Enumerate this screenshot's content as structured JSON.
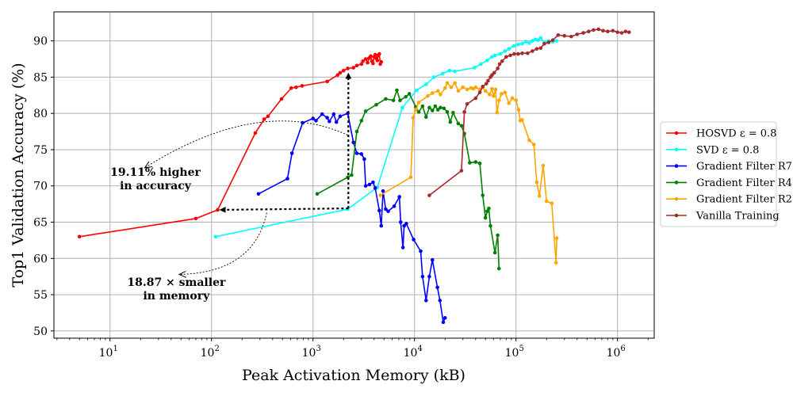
{
  "chart_data": {
    "type": "line",
    "xlabel": "Peak Activation Memory (kB)",
    "ylabel": "Top1 Validation Accuracy (%)",
    "xscale": "log",
    "xlim": [
      2.8,
      2300000
    ],
    "ylim": [
      49,
      94
    ],
    "grid": true,
    "legend_position": "right",
    "yticks": [
      50,
      55,
      60,
      65,
      70,
      75,
      80,
      85,
      90
    ],
    "xticks": [
      {
        "value": 10,
        "base": "10",
        "exp": "1"
      },
      {
        "value": 100,
        "base": "10",
        "exp": "2"
      },
      {
        "value": 1000,
        "base": "10",
        "exp": "3"
      },
      {
        "value": 10000,
        "base": "10",
        "exp": "4"
      },
      {
        "value": 100000,
        "base": "10",
        "exp": "5"
      },
      {
        "value": 1000000,
        "base": "10",
        "exp": "6"
      }
    ],
    "series": [
      {
        "name": "HOSVD ε = 0.8",
        "color": "#ff0000",
        "points": [
          [
            5,
            63.0
          ],
          [
            70,
            65.5
          ],
          [
            115,
            66.7
          ],
          [
            270,
            77.3
          ],
          [
            330,
            79.2
          ],
          [
            360,
            79.6
          ],
          [
            490,
            82.0
          ],
          [
            610,
            83.5
          ],
          [
            680,
            83.6
          ],
          [
            780,
            83.8
          ],
          [
            1380,
            84.4
          ],
          [
            1750,
            85.3
          ],
          [
            1850,
            85.6
          ],
          [
            2000,
            85.9
          ],
          [
            2200,
            86.2
          ],
          [
            2500,
            86.3
          ],
          [
            2700,
            86.6
          ],
          [
            3000,
            86.8
          ],
          [
            3100,
            87.2
          ],
          [
            3300,
            87.5
          ],
          [
            3450,
            87.0
          ],
          [
            3550,
            87.6
          ],
          [
            3700,
            87.9
          ],
          [
            3800,
            87.2
          ],
          [
            3900,
            86.9
          ],
          [
            4000,
            87.8
          ],
          [
            4100,
            88.1
          ],
          [
            4200,
            87.6
          ],
          [
            4300,
            87.3
          ],
          [
            4400,
            88.0
          ],
          [
            4500,
            88.2
          ],
          [
            4600,
            86.8
          ],
          [
            4700,
            87.1
          ]
        ]
      },
      {
        "name": "SVD ε = 0.8",
        "color": "#00ffff",
        "points": [
          [
            110,
            63.0
          ],
          [
            2200,
            66.8
          ],
          [
            4300,
            69.8
          ],
          [
            7600,
            80.8
          ],
          [
            10500,
            83.2
          ],
          [
            13000,
            84.0
          ],
          [
            15500,
            85.0
          ],
          [
            19000,
            85.5
          ],
          [
            22000,
            85.9
          ],
          [
            25000,
            85.8
          ],
          [
            39000,
            86.3
          ],
          [
            45000,
            86.8
          ],
          [
            52000,
            87.3
          ],
          [
            58000,
            87.8
          ],
          [
            62000,
            88.0
          ],
          [
            70000,
            88.2
          ],
          [
            78000,
            88.6
          ],
          [
            85000,
            88.9
          ],
          [
            95000,
            89.3
          ],
          [
            105000,
            89.5
          ],
          [
            115000,
            89.6
          ],
          [
            125000,
            89.9
          ],
          [
            135000,
            89.7
          ],
          [
            145000,
            90.0
          ],
          [
            155000,
            90.2
          ],
          [
            165000,
            90.1
          ],
          [
            175000,
            90.4
          ],
          [
            190000,
            89.8
          ],
          [
            210000,
            90.0
          ],
          [
            230000,
            89.9
          ],
          [
            250000,
            90.0
          ]
        ]
      },
      {
        "name": "Gradient Filter R7",
        "color": "#0000ff",
        "points": [
          [
            290,
            68.9
          ],
          [
            560,
            71.0
          ],
          [
            620,
            74.5
          ],
          [
            790,
            78.7
          ],
          [
            1000,
            79.3
          ],
          [
            1070,
            79.0
          ],
          [
            1230,
            79.9
          ],
          [
            1380,
            79.4
          ],
          [
            1450,
            78.9
          ],
          [
            1600,
            79.9
          ],
          [
            1700,
            78.8
          ],
          [
            1850,
            79.6
          ],
          [
            2200,
            80.0
          ],
          [
            2500,
            76.0
          ],
          [
            2700,
            74.5
          ],
          [
            3000,
            74.4
          ],
          [
            3200,
            73.7
          ],
          [
            3300,
            70.0
          ],
          [
            3600,
            70.2
          ],
          [
            3900,
            70.5
          ],
          [
            4100,
            69.7
          ],
          [
            4500,
            66.6
          ],
          [
            4700,
            64.5
          ],
          [
            4900,
            69.3
          ],
          [
            5200,
            66.8
          ],
          [
            5500,
            66.5
          ],
          [
            6300,
            67.2
          ],
          [
            7100,
            68.5
          ],
          [
            7300,
            65.0
          ],
          [
            7700,
            61.5
          ],
          [
            7900,
            64.5
          ],
          [
            8300,
            64.8
          ],
          [
            9800,
            62.6
          ],
          [
            11500,
            61.0
          ],
          [
            12000,
            57.5
          ],
          [
            13000,
            54.2
          ],
          [
            14000,
            57.5
          ],
          [
            15000,
            59.8
          ],
          [
            16800,
            56.0
          ],
          [
            17800,
            54.2
          ],
          [
            19200,
            51.2
          ],
          [
            20000,
            51.8
          ]
        ]
      },
      {
        "name": "Gradient Filter R4",
        "color": "#008000",
        "points": [
          [
            1100,
            68.9
          ],
          [
            2200,
            71.2
          ],
          [
            2400,
            71.5
          ],
          [
            2700,
            77.5
          ],
          [
            3000,
            79.0
          ],
          [
            3300,
            80.3
          ],
          [
            4200,
            81.2
          ],
          [
            5200,
            82.0
          ],
          [
            6200,
            81.8
          ],
          [
            6700,
            83.2
          ],
          [
            7200,
            81.8
          ],
          [
            8200,
            82.3
          ],
          [
            8900,
            82.7
          ],
          [
            10300,
            80.9
          ],
          [
            11000,
            80.2
          ],
          [
            12000,
            81.0
          ],
          [
            13000,
            79.5
          ],
          [
            14000,
            80.8
          ],
          [
            15000,
            80.4
          ],
          [
            16000,
            81.0
          ],
          [
            17000,
            80.5
          ],
          [
            18000,
            80.8
          ],
          [
            19500,
            80.7
          ],
          [
            21000,
            80.2
          ],
          [
            22500,
            78.8
          ],
          [
            24000,
            80.1
          ],
          [
            27000,
            78.6
          ],
          [
            29000,
            78.3
          ],
          [
            31000,
            77.2
          ],
          [
            35000,
            73.2
          ],
          [
            40000,
            73.3
          ],
          [
            44000,
            73.1
          ],
          [
            47000,
            68.7
          ],
          [
            50000,
            65.6
          ],
          [
            52000,
            66.5
          ],
          [
            54000,
            66.9
          ],
          [
            56000,
            64.5
          ],
          [
            62000,
            60.8
          ],
          [
            66000,
            63.2
          ],
          [
            68000,
            58.6
          ]
        ]
      },
      {
        "name": "Gradient Filter R2",
        "color": "#ffa500",
        "points": [
          [
            4600,
            68.7
          ],
          [
            9200,
            71.2
          ],
          [
            9700,
            79.4
          ],
          [
            10300,
            80.5
          ],
          [
            11000,
            81.5
          ],
          [
            13500,
            82.4
          ],
          [
            15000,
            82.8
          ],
          [
            17000,
            83.1
          ],
          [
            18000,
            82.6
          ],
          [
            20000,
            83.5
          ],
          [
            21000,
            84.2
          ],
          [
            23000,
            83.6
          ],
          [
            25000,
            84.2
          ],
          [
            27000,
            83.1
          ],
          [
            30000,
            83.6
          ],
          [
            33000,
            83.3
          ],
          [
            36000,
            83.5
          ],
          [
            38000,
            83.4
          ],
          [
            40000,
            83.6
          ],
          [
            44000,
            83.3
          ],
          [
            47000,
            83.6
          ],
          [
            50000,
            83.1
          ],
          [
            55000,
            82.6
          ],
          [
            58000,
            83.4
          ],
          [
            60000,
            82.4
          ],
          [
            63000,
            83.3
          ],
          [
            65000,
            80.1
          ],
          [
            68000,
            81.8
          ],
          [
            72000,
            82.7
          ],
          [
            78000,
            82.9
          ],
          [
            85000,
            81.4
          ],
          [
            92000,
            82.1
          ],
          [
            100000,
            81.8
          ],
          [
            106000,
            80.5
          ],
          [
            110000,
            79.0
          ],
          [
            115000,
            79.1
          ],
          [
            135000,
            76.3
          ],
          [
            150000,
            75.7
          ],
          [
            160000,
            70.5
          ],
          [
            170000,
            68.6
          ],
          [
            185000,
            72.8
          ],
          [
            200000,
            67.9
          ],
          [
            225000,
            67.6
          ],
          [
            248000,
            59.4
          ],
          [
            252000,
            62.8
          ]
        ]
      },
      {
        "name": "Vanilla Training",
        "color": "#a52a2a",
        "points": [
          [
            14000,
            68.7
          ],
          [
            29000,
            72.1
          ],
          [
            31000,
            80.2
          ],
          [
            33000,
            81.3
          ],
          [
            40000,
            82.1
          ],
          [
            44000,
            82.9
          ],
          [
            47000,
            83.7
          ],
          [
            51000,
            84.1
          ],
          [
            53000,
            84.5
          ],
          [
            56000,
            85.0
          ],
          [
            58000,
            85.3
          ],
          [
            61000,
            85.6
          ],
          [
            66000,
            86.2
          ],
          [
            69000,
            86.8
          ],
          [
            73000,
            87.2
          ],
          [
            80000,
            87.8
          ],
          [
            88000,
            88.0
          ],
          [
            96000,
            88.2
          ],
          [
            105000,
            88.2
          ],
          [
            115000,
            88.3
          ],
          [
            130000,
            88.3
          ],
          [
            145000,
            88.6
          ],
          [
            160000,
            88.9
          ],
          [
            175000,
            89.0
          ],
          [
            190000,
            89.6
          ],
          [
            210000,
            89.8
          ],
          [
            230000,
            90.1
          ],
          [
            260000,
            90.8
          ],
          [
            300000,
            90.7
          ],
          [
            350000,
            90.6
          ],
          [
            400000,
            90.9
          ],
          [
            460000,
            91.1
          ],
          [
            520000,
            91.3
          ],
          [
            580000,
            91.5
          ],
          [
            650000,
            91.6
          ],
          [
            720000,
            91.4
          ],
          [
            800000,
            91.3
          ],
          [
            900000,
            91.4
          ],
          [
            1000000,
            91.2
          ],
          [
            1100000,
            91.1
          ],
          [
            1200000,
            91.3
          ],
          [
            1300000,
            91.2
          ]
        ]
      }
    ],
    "annotations": [
      {
        "lines": [
          "19.11% higher",
          "in accuracy"
        ]
      },
      {
        "lines": [
          "18.87 × smaller",
          "in memory"
        ]
      }
    ]
  }
}
